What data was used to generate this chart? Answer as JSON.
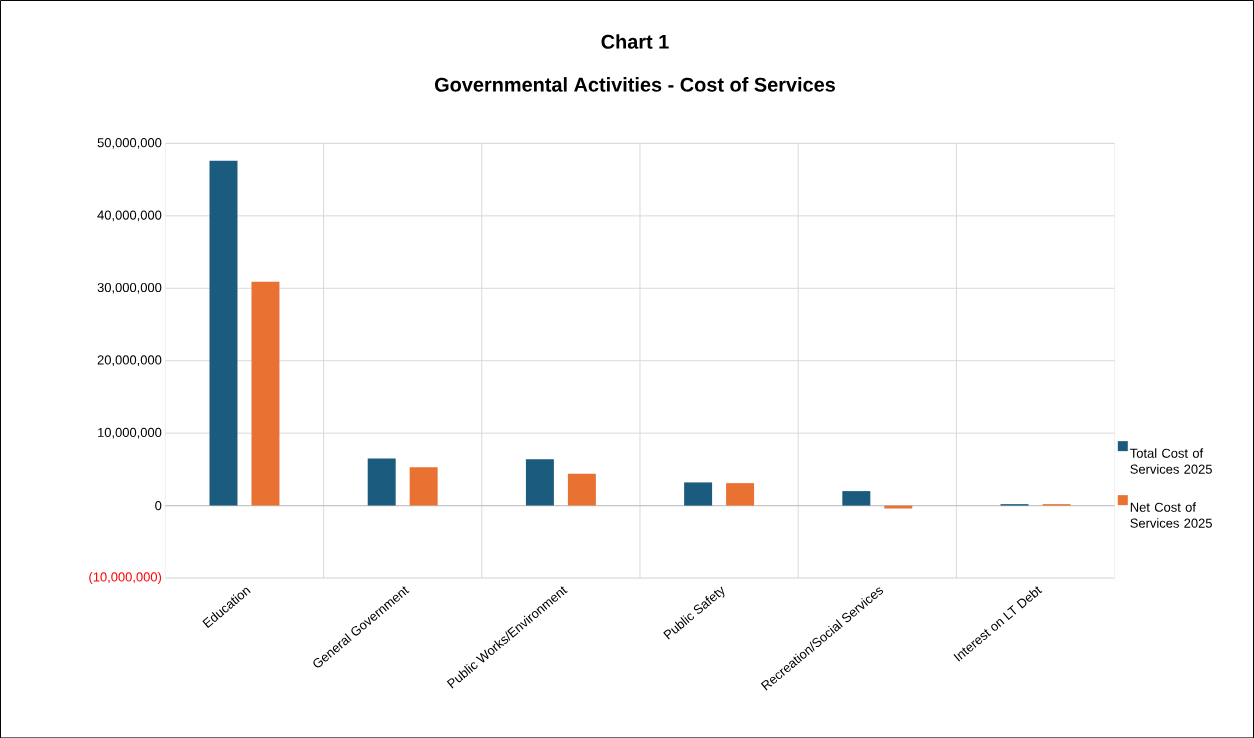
{
  "chart_data": {
    "type": "bar",
    "title": "Chart 1",
    "subtitle": "Governmental Activities - Cost of Services",
    "categories": [
      "Education",
      "General Government",
      "Public Works/Environment",
      "Public Safety",
      "Recreation/Social Services",
      "Interest on LT Debt"
    ],
    "series": [
      {
        "name": "Total Cost of Services 2025",
        "color": "#1b5b7d",
        "values": [
          47600000,
          6500000,
          6400000,
          3200000,
          2000000,
          200000
        ]
      },
      {
        "name": "Net Cost of Services 2025",
        "color": "#e97132",
        "values": [
          30900000,
          5300000,
          4400000,
          3100000,
          -400000,
          200000
        ]
      }
    ],
    "ylim": [
      -10000000,
      50000000
    ],
    "yticks": [
      {
        "value": -10000000,
        "label": "(10,000,000)"
      },
      {
        "value": 0,
        "label": "0"
      },
      {
        "value": 10000000,
        "label": "10,000,000"
      },
      {
        "value": 20000000,
        "label": "20,000,000"
      },
      {
        "value": 30000000,
        "label": "30,000,000"
      },
      {
        "value": 40000000,
        "label": "40,000,000"
      },
      {
        "value": 50000000,
        "label": "50,000,000"
      }
    ],
    "grid": true,
    "legend": "right"
  }
}
